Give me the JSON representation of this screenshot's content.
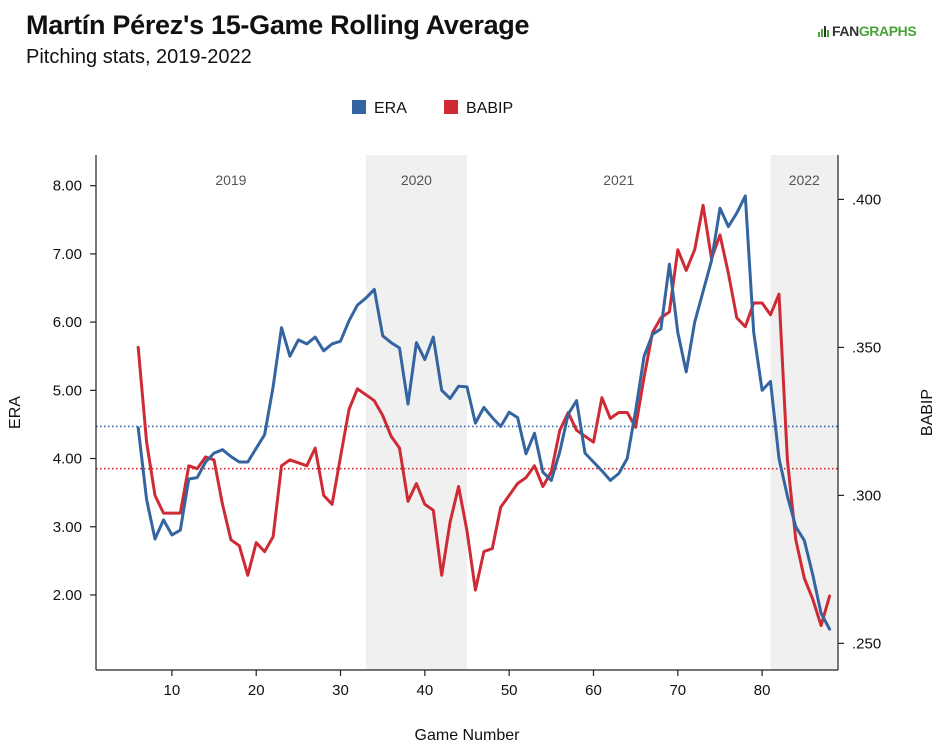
{
  "title": "Martín Pérez's 15-Game Rolling Average",
  "subtitle": "Pitching stats, 2019-2022",
  "logo": {
    "prefix": "FAN",
    "suffix": "GRAPHS",
    "icon": "fangraphs-bars-icon"
  },
  "chart_data": {
    "type": "line",
    "xlabel": "Game Number",
    "ylabel_left": "ERA",
    "ylabel_right": "BABIP",
    "xlim": [
      1,
      89
    ],
    "ylim_left": [
      0.9,
      8.45
    ],
    "ylim_right": [
      0.241,
      0.415
    ],
    "x_ticks": [
      10,
      20,
      30,
      40,
      50,
      60,
      70,
      80
    ],
    "x_tick_labels": [
      "10",
      "20",
      "30",
      "40",
      "50",
      "60",
      "70",
      "80"
    ],
    "y_left_ticks": [
      2,
      3,
      4,
      5,
      6,
      7,
      8
    ],
    "y_left_tick_labels": [
      "2.00",
      "3.00",
      "4.00",
      "5.00",
      "6.00",
      "7.00",
      "8.00"
    ],
    "y_right_ticks": [
      0.25,
      0.3,
      0.35,
      0.4
    ],
    "y_right_tick_labels": [
      ".250",
      ".300",
      ".350",
      ".400"
    ],
    "legend_position": "top-center",
    "grid": false,
    "seasons": [
      {
        "label": "2019",
        "start": 1,
        "end": 33,
        "shaded": false
      },
      {
        "label": "2020",
        "start": 33,
        "end": 45,
        "shaded": true
      },
      {
        "label": "2021",
        "start": 45,
        "end": 81,
        "shaded": false
      },
      {
        "label": "2022",
        "start": 81,
        "end": 89,
        "shaded": true
      }
    ],
    "reference_lines": [
      {
        "series": "ERA",
        "axis": "left",
        "value": 4.47,
        "color": "#3565a0"
      },
      {
        "series": "BABIP",
        "axis": "right",
        "value": 0.309,
        "color": "#cf2b35"
      }
    ],
    "series": [
      {
        "name": "ERA",
        "axis": "left",
        "color": "#3565a0",
        "x": [
          6,
          7,
          8,
          9,
          10,
          11,
          12,
          13,
          14,
          15,
          16,
          17,
          18,
          19,
          20,
          21,
          22,
          23,
          24,
          25,
          26,
          27,
          28,
          29,
          30,
          31,
          32,
          33,
          34,
          35,
          36,
          37,
          38,
          39,
          40,
          41,
          42,
          43,
          44,
          45,
          46,
          47,
          48,
          49,
          50,
          51,
          52,
          53,
          54,
          55,
          56,
          57,
          58,
          59,
          60,
          61,
          62,
          63,
          64,
          65,
          66,
          67,
          68,
          69,
          70,
          71,
          72,
          73,
          74,
          75,
          76,
          77,
          78,
          79,
          80,
          81,
          82,
          83,
          84,
          85,
          86,
          87,
          88
        ],
        "values": [
          4.45,
          3.4,
          2.82,
          3.1,
          2.88,
          2.95,
          3.7,
          3.72,
          3.95,
          4.08,
          4.13,
          4.03,
          3.95,
          3.95,
          4.15,
          4.35,
          5.05,
          5.92,
          5.5,
          5.74,
          5.68,
          5.78,
          5.58,
          5.68,
          5.72,
          6.02,
          6.25,
          6.35,
          6.48,
          5.8,
          5.7,
          5.62,
          4.8,
          5.7,
          5.45,
          5.78,
          5.0,
          4.88,
          5.06,
          5.05,
          4.52,
          4.75,
          4.6,
          4.47,
          4.68,
          4.6,
          4.07,
          4.37,
          3.8,
          3.68,
          4.1,
          4.65,
          4.85,
          4.08,
          3.95,
          3.82,
          3.68,
          3.78,
          4.0,
          4.7,
          5.5,
          5.82,
          5.9,
          6.85,
          5.85,
          5.27,
          6.0,
          6.45,
          6.9,
          7.67,
          7.4,
          7.6,
          7.85,
          5.85,
          5.0,
          5.13,
          4.0,
          3.45,
          3.0,
          2.8,
          2.3,
          1.73,
          1.5
        ]
      },
      {
        "name": "BABIP",
        "axis": "right",
        "color": "#cf2b35",
        "x": [
          6,
          7,
          8,
          9,
          10,
          11,
          12,
          13,
          14,
          15,
          16,
          17,
          18,
          19,
          20,
          21,
          22,
          23,
          24,
          25,
          26,
          27,
          28,
          29,
          30,
          31,
          32,
          33,
          34,
          35,
          36,
          37,
          38,
          39,
          40,
          41,
          42,
          43,
          44,
          45,
          46,
          47,
          48,
          49,
          50,
          51,
          52,
          53,
          54,
          55,
          56,
          57,
          58,
          59,
          60,
          61,
          62,
          63,
          64,
          65,
          66,
          67,
          68,
          69,
          70,
          71,
          72,
          73,
          74,
          75,
          76,
          77,
          78,
          79,
          80,
          81,
          82,
          83,
          84,
          85,
          86,
          87,
          88
        ],
        "values": [
          0.35,
          0.318,
          0.3,
          0.294,
          0.294,
          0.294,
          0.31,
          0.309,
          0.313,
          0.312,
          0.297,
          0.285,
          0.283,
          0.273,
          0.284,
          0.281,
          0.286,
          0.31,
          0.312,
          0.311,
          0.31,
          0.316,
          0.3,
          0.297,
          0.313,
          0.329,
          0.336,
          0.334,
          0.332,
          0.327,
          0.32,
          0.316,
          0.298,
          0.304,
          0.297,
          0.295,
          0.273,
          0.291,
          0.303,
          0.288,
          0.268,
          0.281,
          0.282,
          0.296,
          0.3,
          0.304,
          0.306,
          0.31,
          0.303,
          0.308,
          0.322,
          0.328,
          0.322,
          0.32,
          0.318,
          0.333,
          0.326,
          0.328,
          0.328,
          0.323,
          0.34,
          0.355,
          0.36,
          0.362,
          0.383,
          0.376,
          0.383,
          0.398,
          0.38,
          0.388,
          0.375,
          0.36,
          0.357,
          0.365,
          0.365,
          0.361,
          0.368,
          0.312,
          0.285,
          0.272,
          0.265,
          0.256,
          0.266
        ]
      }
    ]
  }
}
